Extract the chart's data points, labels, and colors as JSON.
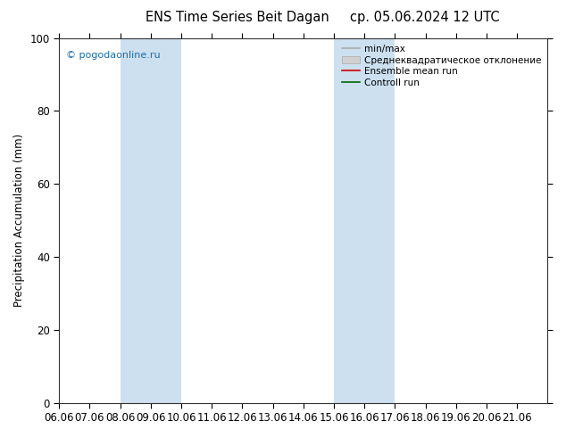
{
  "title_left": "ENS Time Series Beit Dagan",
  "title_right": "ср. 05.06.2024 12 UTC",
  "ylabel": "Precipitation Accumulation (mm)",
  "watermark": "© pogodaonline.ru",
  "xlim_start": 0,
  "xlim_end": 16,
  "ylim": [
    0,
    100
  ],
  "yticks": [
    0,
    20,
    40,
    60,
    80,
    100
  ],
  "xtick_labels": [
    "06.06",
    "07.06",
    "08.06",
    "09.06",
    "10.06",
    "11.06",
    "12.06",
    "13.06",
    "14.06",
    "15.06",
    "16.06",
    "17.06",
    "18.06",
    "19.06",
    "20.06",
    "21.06"
  ],
  "shaded_regions": [
    {
      "x_start": 2,
      "x_end": 4,
      "color": "#cce0f0"
    },
    {
      "x_start": 9,
      "x_end": 11,
      "color": "#cce0f0"
    }
  ],
  "legend_entries": [
    {
      "label": "min/max",
      "color": "#aaaaaa",
      "linewidth": 1.2,
      "linestyle": "-",
      "type": "line"
    },
    {
      "label": "Среднеквадратическое отклонение",
      "color": "#d0d0d0",
      "linewidth": 7,
      "linestyle": "-",
      "type": "patch"
    },
    {
      "label": "Ensemble mean run",
      "color": "#cc0000",
      "linewidth": 1.2,
      "linestyle": "-",
      "type": "line"
    },
    {
      "label": "Controll run",
      "color": "#006600",
      "linewidth": 1.2,
      "linestyle": "-",
      "type": "line"
    }
  ],
  "background_color": "#ffffff",
  "plot_bg_color": "#ffffff",
  "watermark_color": "#1a6eb5",
  "title_fontsize": 10.5,
  "axis_fontsize": 8.5,
  "legend_fontsize": 7.5
}
